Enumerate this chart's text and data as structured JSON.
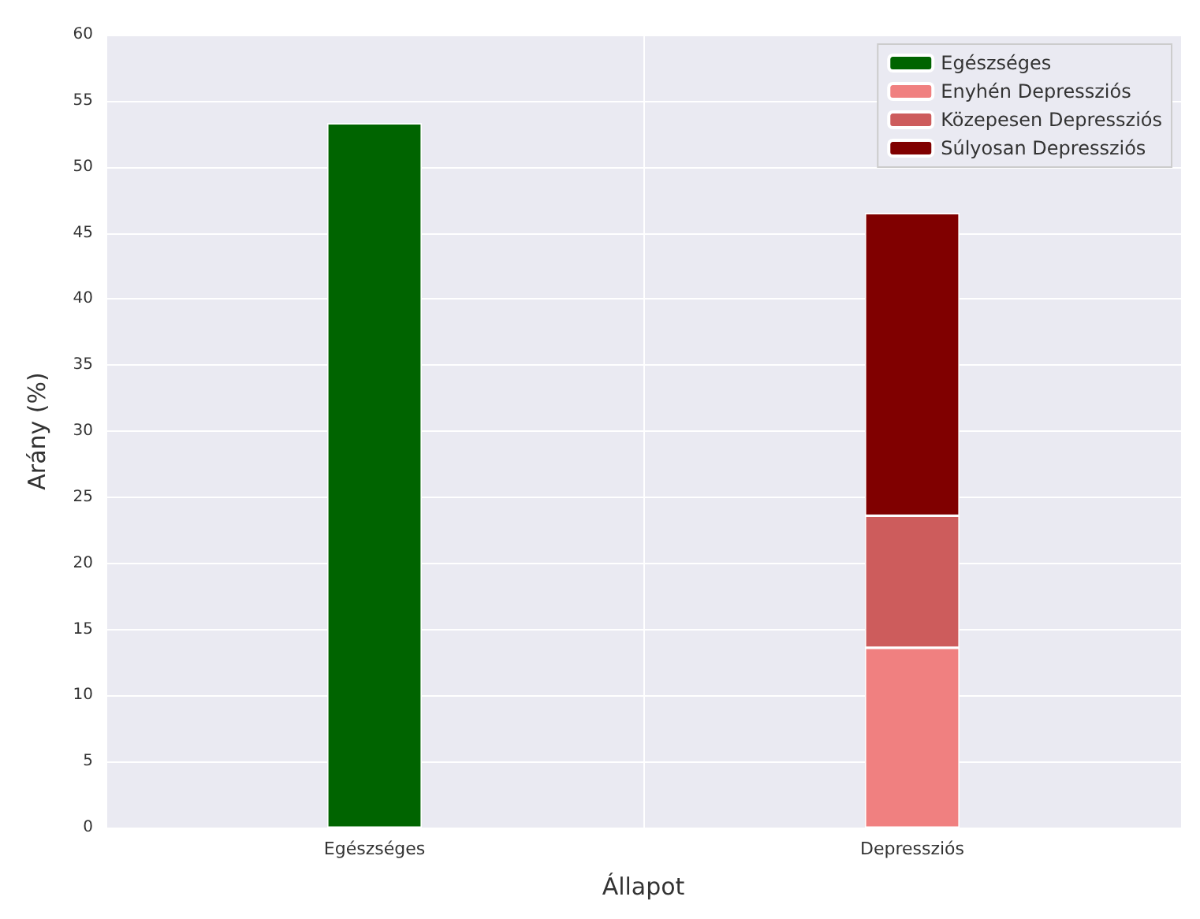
{
  "chart_data": {
    "type": "bar",
    "stacked": true,
    "xlabel": "Állapot",
    "ylabel": "Arány (%)",
    "categories": [
      "Egészséges",
      "Depressziós"
    ],
    "series": [
      {
        "name": "Egészséges",
        "color": "#006400",
        "values": [
          53.3,
          null
        ]
      },
      {
        "name": "Enyhén Depressziós",
        "color": "#f08080",
        "values": [
          null,
          13.6
        ]
      },
      {
        "name": "Közepesen Depressziós",
        "color": "#cd5c5c",
        "values": [
          null,
          10.0
        ]
      },
      {
        "name": "Súlyosan Depressziós",
        "color": "#800000",
        "values": [
          null,
          22.9
        ]
      }
    ],
    "ylim": [
      0,
      60
    ],
    "yticks": [
      0,
      5,
      10,
      15,
      20,
      25,
      30,
      35,
      40,
      45,
      50,
      55,
      60
    ],
    "grid": true,
    "legend": "top right"
  }
}
